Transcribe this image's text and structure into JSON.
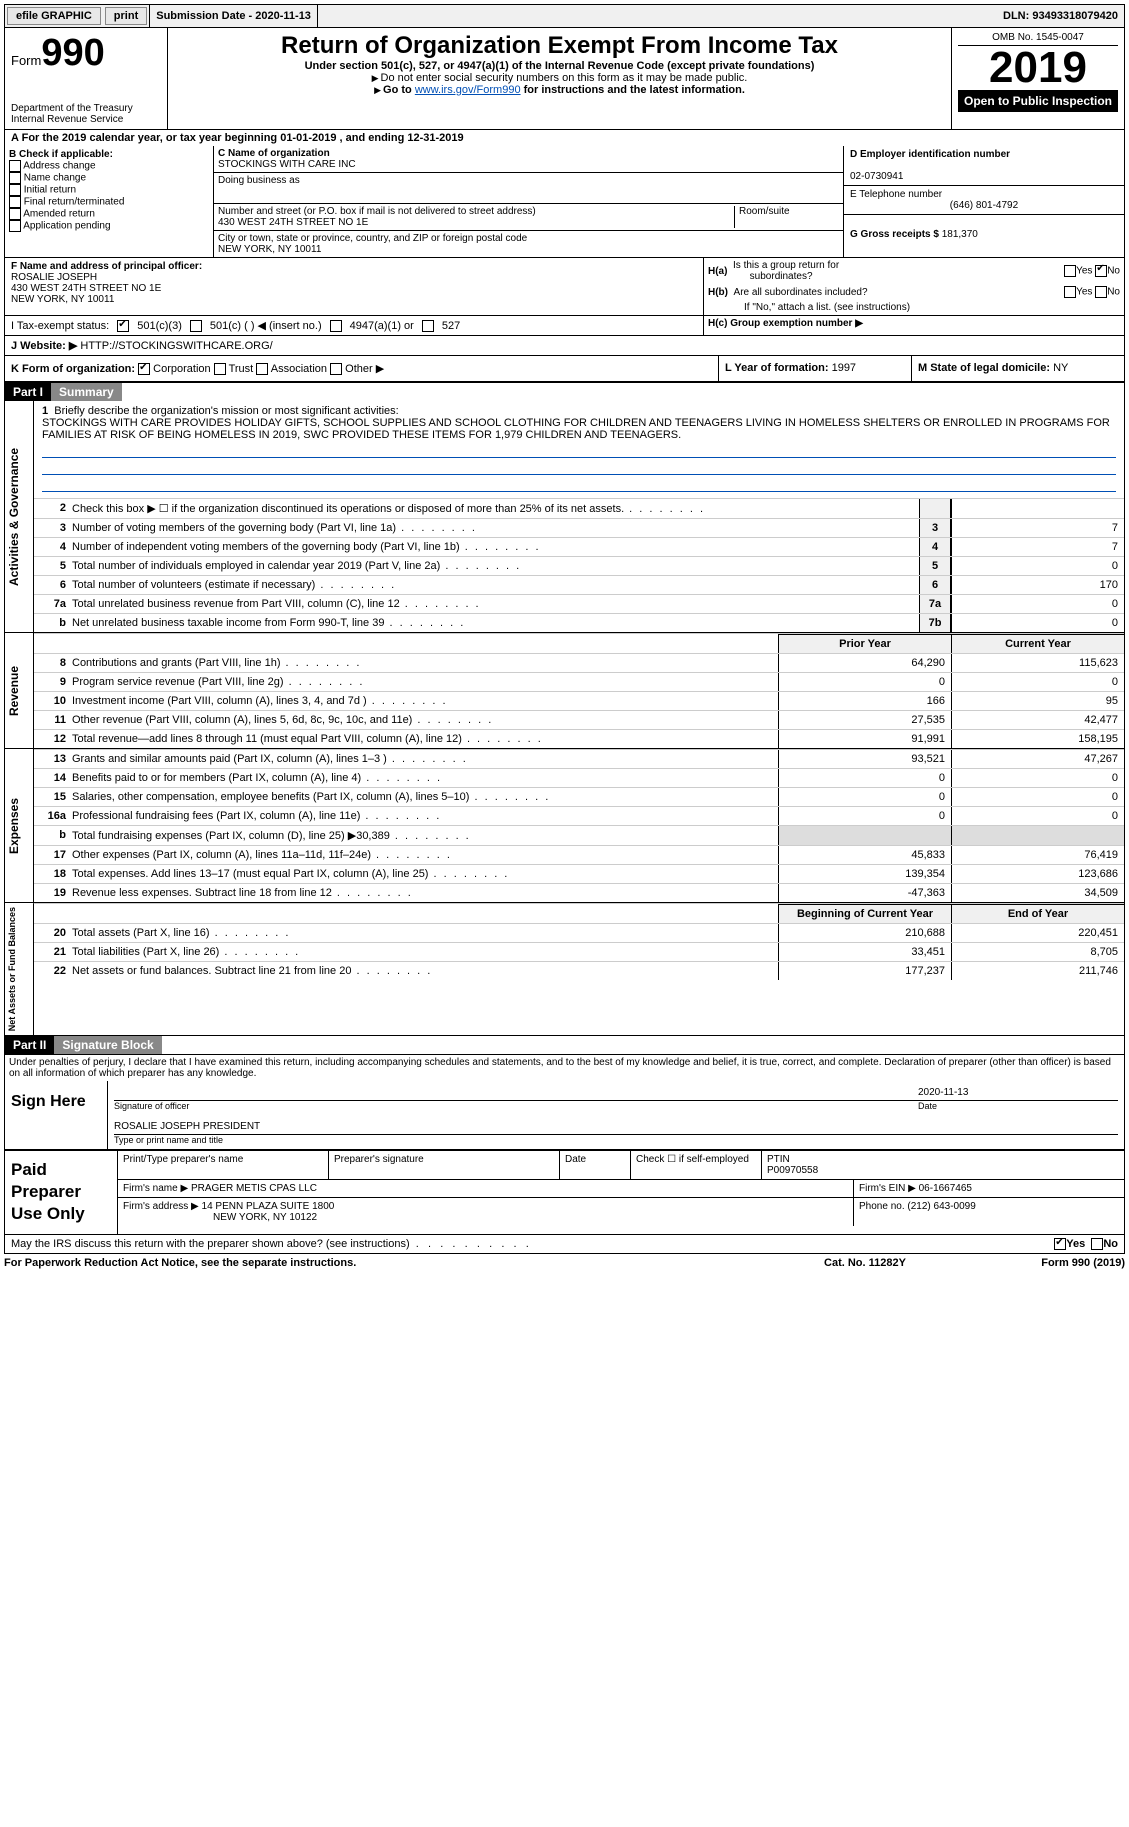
{
  "topbar": {
    "efile": "efile GRAPHIC",
    "print": "print",
    "submission": "Submission Date - 2020-11-13",
    "dln": "DLN: 93493318079420"
  },
  "header": {
    "form_label": "Form",
    "form_number": "990",
    "dept": "Department of the Treasury\nInternal Revenue Service",
    "title": "Return of Organization Exempt From Income Tax",
    "subtitle": "Under section 501(c), 527, or 4947(a)(1) of the Internal Revenue Code (except private foundations)",
    "note1": "Do not enter social security numbers on this form as it may be made public.",
    "note2_a": "Go to ",
    "note2_link": "www.irs.gov/Form990",
    "note2_b": " for instructions and the latest information.",
    "omb": "OMB No. 1545-0047",
    "year": "2019",
    "open": "Open to Public Inspection"
  },
  "a_line": "For the 2019 calendar year, or tax year beginning 01-01-2019   , and ending 12-31-2019",
  "b": {
    "label": "B Check if applicable:",
    "opts": [
      "Address change",
      "Name change",
      "Initial return",
      "Final return/terminated",
      "Amended return",
      "Application pending"
    ]
  },
  "c": {
    "name_label": "C Name of organization",
    "name": "STOCKINGS WITH CARE INC",
    "dba_label": "Doing business as",
    "addr_label": "Number and street (or P.O. box if mail is not delivered to street address)",
    "room_label": "Room/suite",
    "addr": "430 WEST 24TH STREET NO 1E",
    "city_label": "City or town, state or province, country, and ZIP or foreign postal code",
    "city": "NEW YORK, NY  10011"
  },
  "d": {
    "ein_label": "D Employer identification number",
    "ein": "02-0730941",
    "e_label": "E Telephone number",
    "phone": "(646) 801-4792",
    "g_label": "G Gross receipts $",
    "g_val": "181,370"
  },
  "f": {
    "label": "F  Name and address of principal officer:",
    "name": "ROSALIE JOSEPH",
    "addr": "430 WEST 24TH STREET NO 1E",
    "city": "NEW YORK, NY  10011"
  },
  "h": {
    "a_label": "H(a)  Is this a group return for subordinates?",
    "b_label": "H(b)  Are all subordinates included?",
    "b_note": "If \"No,\" attach a list. (see instructions)",
    "c_label": "H(c)  Group exemption number ▶",
    "yes": "Yes",
    "no": "No"
  },
  "i": {
    "label": "I   Tax-exempt status:",
    "o1": "501(c)(3)",
    "o2": "501(c) (  ) ◀ (insert no.)",
    "o3": "4947(a)(1) or",
    "o4": "527"
  },
  "j": {
    "label": "J   Website: ▶",
    "url": "HTTP://STOCKINGSWITHCARE.ORG/"
  },
  "k": {
    "label": "K Form of organization:",
    "o1": "Corporation",
    "o2": "Trust",
    "o3": "Association",
    "o4": "Other ▶"
  },
  "l": {
    "label": "L Year of formation:",
    "val": "1997"
  },
  "m": {
    "label": "M State of legal domicile:",
    "val": "NY"
  },
  "part1": {
    "bar": "Part I",
    "title": "Summary"
  },
  "mission": {
    "num": "1",
    "intro": "Briefly describe the organization's mission or most significant activities:",
    "text": "STOCKINGS WITH CARE PROVIDES HOLIDAY GIFTS, SCHOOL SUPPLIES AND SCHOOL CLOTHING FOR CHILDREN AND TEENAGERS LIVING IN HOMELESS SHELTERS OR ENROLLED IN PROGRAMS FOR FAMILIES AT RISK OF BEING HOMELESS IN 2019, SWC PROVIDED THESE ITEMS FOR 1,979 CHILDREN AND TEENAGERS."
  },
  "gov_lines": [
    {
      "n": "2",
      "d": "Check this box ▶ ☐  if the organization discontinued its operations or disposed of more than 25% of its net assets.",
      "box": "",
      "v": ""
    },
    {
      "n": "3",
      "d": "Number of voting members of the governing body (Part VI, line 1a)",
      "box": "3",
      "v": "7"
    },
    {
      "n": "4",
      "d": "Number of independent voting members of the governing body (Part VI, line 1b)",
      "box": "4",
      "v": "7"
    },
    {
      "n": "5",
      "d": "Total number of individuals employed in calendar year 2019 (Part V, line 2a)",
      "box": "5",
      "v": "0"
    },
    {
      "n": "6",
      "d": "Total number of volunteers (estimate if necessary)",
      "box": "6",
      "v": "170"
    },
    {
      "n": "7a",
      "d": "Total unrelated business revenue from Part VIII, column (C), line 12",
      "box": "7a",
      "v": "0"
    },
    {
      "n": "b",
      "d": "Net unrelated business taxable income from Form 990-T, line 39",
      "box": "7b",
      "v": "0"
    }
  ],
  "rev_hdr": {
    "py": "Prior Year",
    "cy": "Current Year"
  },
  "rev_lines": [
    {
      "n": "8",
      "d": "Contributions and grants (Part VIII, line 1h)",
      "py": "64,290",
      "cy": "115,623"
    },
    {
      "n": "9",
      "d": "Program service revenue (Part VIII, line 2g)",
      "py": "0",
      "cy": "0"
    },
    {
      "n": "10",
      "d": "Investment income (Part VIII, column (A), lines 3, 4, and 7d )",
      "py": "166",
      "cy": "95"
    },
    {
      "n": "11",
      "d": "Other revenue (Part VIII, column (A), lines 5, 6d, 8c, 9c, 10c, and 11e)",
      "py": "27,535",
      "cy": "42,477"
    },
    {
      "n": "12",
      "d": "Total revenue—add lines 8 through 11 (must equal Part VIII, column (A), line 12)",
      "py": "91,991",
      "cy": "158,195"
    }
  ],
  "exp_lines": [
    {
      "n": "13",
      "d": "Grants and similar amounts paid (Part IX, column (A), lines 1–3 )",
      "py": "93,521",
      "cy": "47,267"
    },
    {
      "n": "14",
      "d": "Benefits paid to or for members (Part IX, column (A), line 4)",
      "py": "0",
      "cy": "0"
    },
    {
      "n": "15",
      "d": "Salaries, other compensation, employee benefits (Part IX, column (A), lines 5–10)",
      "py": "0",
      "cy": "0"
    },
    {
      "n": "16a",
      "d": "Professional fundraising fees (Part IX, column (A), line 11e)",
      "py": "0",
      "cy": "0"
    },
    {
      "n": "b",
      "d": "Total fundraising expenses (Part IX, column (D), line 25) ▶30,389",
      "py": "",
      "cy": "",
      "shade": true
    },
    {
      "n": "17",
      "d": "Other expenses (Part IX, column (A), lines 11a–11d, 11f–24e)",
      "py": "45,833",
      "cy": "76,419"
    },
    {
      "n": "18",
      "d": "Total expenses. Add lines 13–17 (must equal Part IX, column (A), line 25)",
      "py": "139,354",
      "cy": "123,686"
    },
    {
      "n": "19",
      "d": "Revenue less expenses. Subtract line 18 from line 12",
      "py": "-47,363",
      "cy": "34,509"
    }
  ],
  "na_hdr": {
    "py": "Beginning of Current Year",
    "cy": "End of Year"
  },
  "na_lines": [
    {
      "n": "20",
      "d": "Total assets (Part X, line 16)",
      "py": "210,688",
      "cy": "220,451"
    },
    {
      "n": "21",
      "d": "Total liabilities (Part X, line 26)",
      "py": "33,451",
      "cy": "8,705"
    },
    {
      "n": "22",
      "d": "Net assets or fund balances. Subtract line 21 from line 20",
      "py": "177,237",
      "cy": "211,746"
    }
  ],
  "vlabels": {
    "gov": "Activities & Governance",
    "rev": "Revenue",
    "exp": "Expenses",
    "na": "Net Assets or Fund Balances"
  },
  "part2": {
    "bar": "Part II",
    "title": "Signature Block"
  },
  "perjury": "Under penalties of perjury, I declare that I have examined this return, including accompanying schedules and statements, and to the best of my knowledge and belief, it is true, correct, and complete. Declaration of preparer (other than officer) is based on all information of which preparer has any knowledge.",
  "sign": {
    "here": "Sign Here",
    "sig_label": "Signature of officer",
    "date_label": "Date",
    "date": "2020-11-13",
    "name": "ROSALIE JOSEPH  PRESIDENT",
    "name_label": "Type or print name and title"
  },
  "prep": {
    "label": "Paid Preparer Use Only",
    "h1": "Print/Type preparer's name",
    "h2": "Preparer's signature",
    "h3": "Date",
    "h4a": "Check ☐ if self-employed",
    "h5": "PTIN",
    "ptin": "P00970558",
    "firm_label": "Firm's name    ▶",
    "firm": "PRAGER METIS CPAS LLC",
    "ein_label": "Firm's EIN ▶",
    "ein": "06-1667465",
    "addr_label": "Firm's address ▶",
    "addr": "14 PENN PLAZA SUITE 1800",
    "city": "NEW YORK, NY  10122",
    "phone_label": "Phone no.",
    "phone": "(212) 643-0099"
  },
  "discuss": {
    "q": "May the IRS discuss this return with the preparer shown above? (see instructions)",
    "yes": "Yes",
    "no": "No"
  },
  "footer": {
    "l": "For Paperwork Reduction Act Notice, see the separate instructions.",
    "c": "Cat. No. 11282Y",
    "r": "Form 990 (2019)"
  }
}
